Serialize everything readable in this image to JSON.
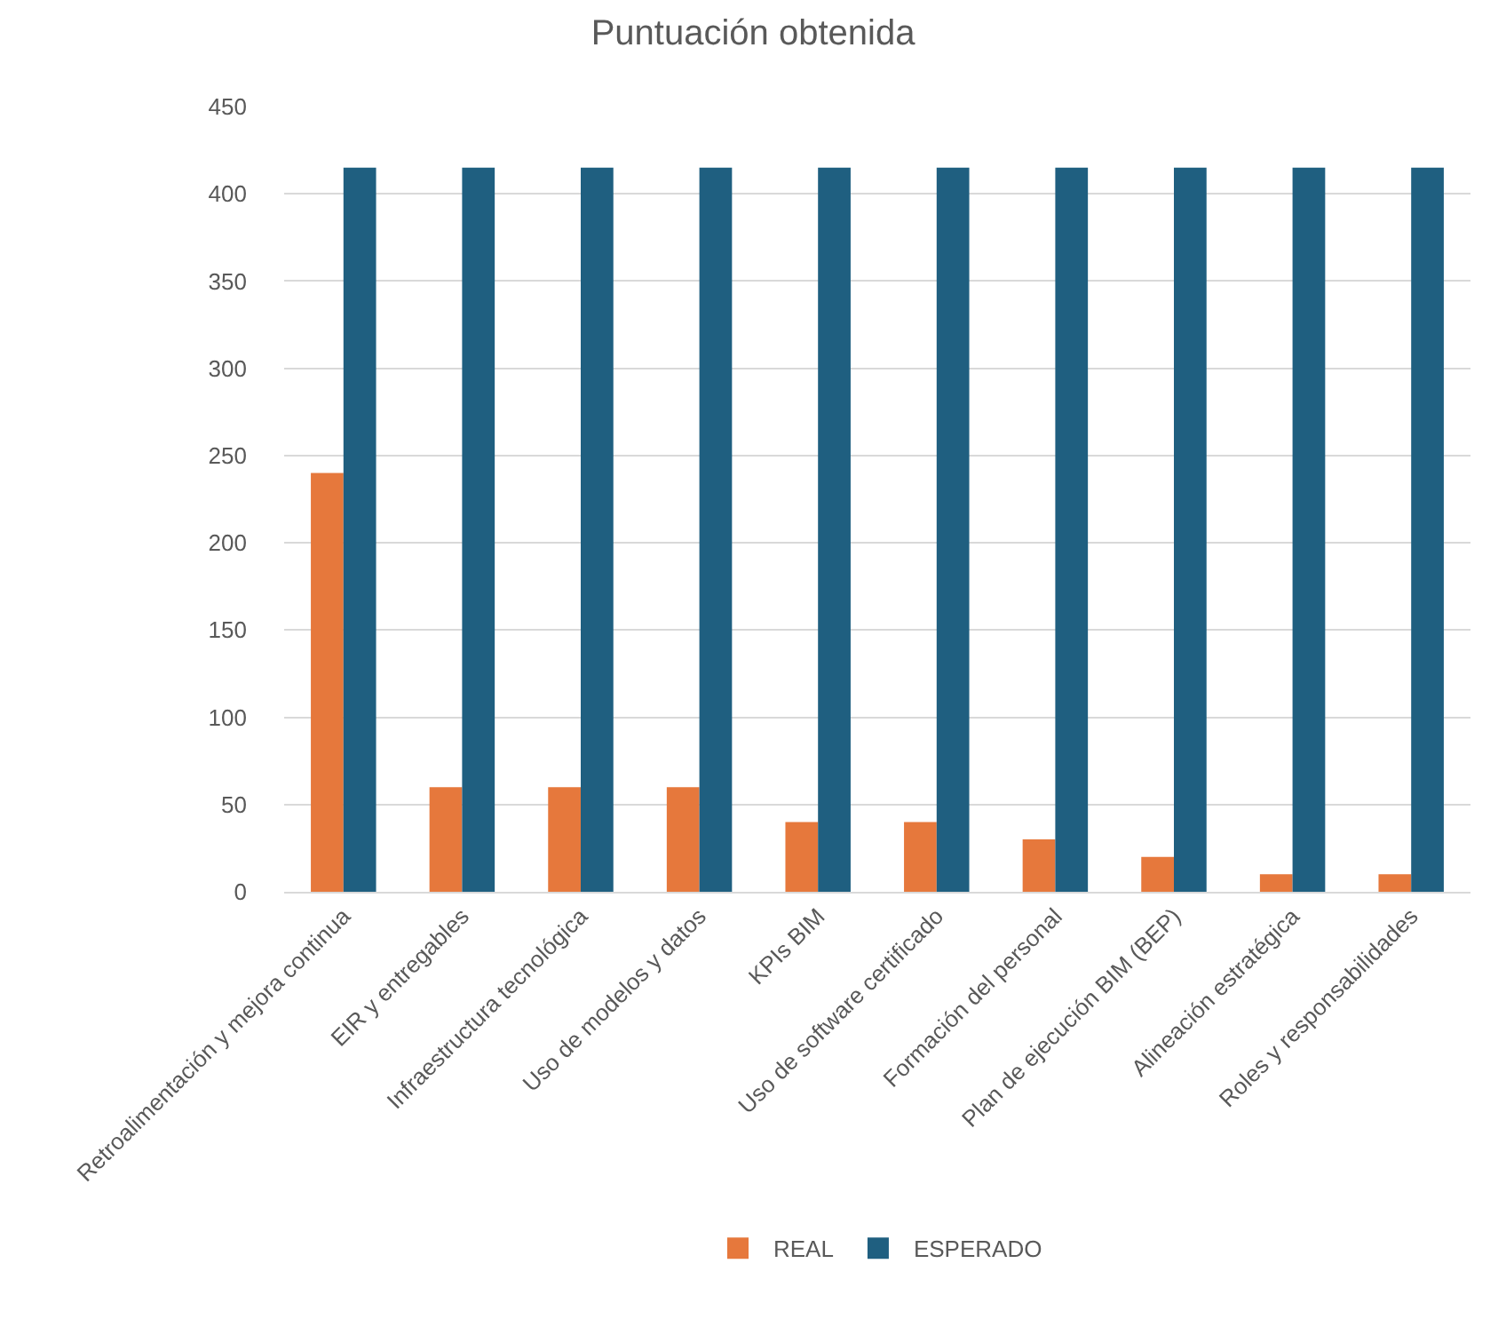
{
  "chart_data": {
    "type": "bar",
    "title": "Puntuación obtenida",
    "categories": [
      "Retroalimentación y mejora continua",
      "EIR y entregables",
      "Infraestructura tecnológica",
      "Uso de modelos y datos",
      "KPIs BIM",
      "Uso de software certificado",
      "Formación del personal",
      "Plan de ejecución BIM (BEP)",
      "Alineación estratégica",
      "Roles y responsabilidades"
    ],
    "series": [
      {
        "name": "REAL",
        "color": "#e6783c",
        "values": [
          240,
          60,
          60,
          60,
          40,
          40,
          30,
          20,
          10,
          10
        ]
      },
      {
        "name": "ESPERADO",
        "color": "#1f5f80",
        "values": [
          415,
          415,
          415,
          415,
          415,
          415,
          415,
          415,
          415,
          415
        ]
      }
    ],
    "ylim": [
      0,
      450
    ],
    "yticks": [
      0,
      50,
      100,
      150,
      200,
      250,
      300,
      350,
      400,
      450
    ],
    "grid": "y",
    "legend": "bottom"
  }
}
